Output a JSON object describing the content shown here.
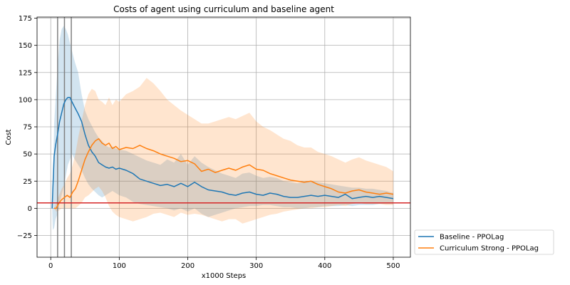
{
  "chart_data": {
    "type": "line",
    "title": "Costs of agent using curriculum and baseline agent",
    "xlabel": "x1000 Steps",
    "ylabel": "Cost",
    "xlim": [
      -20,
      525
    ],
    "ylim": [
      -45,
      176
    ],
    "xticks": [
      0,
      100,
      200,
      300,
      400,
      500
    ],
    "yticks": [
      -25,
      0,
      25,
      50,
      75,
      100,
      125,
      150,
      175
    ],
    "grid": true,
    "legend_position": "outside bottom-right",
    "threshold": {
      "y": 5,
      "color": "#d62728"
    },
    "vlines": {
      "x": [
        10,
        20,
        30
      ],
      "color": "#808080"
    },
    "series": [
      {
        "name": "Baseline - PPOLag",
        "color": "#1f77b4",
        "x": [
          2,
          3,
          5,
          7,
          10,
          13,
          16,
          19,
          22,
          25,
          28,
          31,
          35,
          40,
          45,
          50,
          55,
          60,
          65,
          70,
          75,
          80,
          85,
          90,
          95,
          100,
          110,
          120,
          130,
          140,
          150,
          160,
          170,
          180,
          190,
          200,
          210,
          220,
          230,
          240,
          250,
          260,
          270,
          280,
          290,
          300,
          310,
          320,
          330,
          340,
          350,
          360,
          370,
          380,
          390,
          400,
          410,
          420,
          430,
          440,
          450,
          460,
          470,
          480,
          490,
          500
        ],
        "y": [
          0,
          17,
          48,
          58,
          68,
          80,
          88,
          96,
          100,
          102,
          102,
          98,
          93,
          87,
          80,
          68,
          58,
          52,
          48,
          42,
          40,
          38,
          37,
          38,
          36,
          37,
          35,
          32,
          27,
          25,
          23,
          21,
          22,
          20,
          23,
          20,
          24,
          20,
          17,
          16,
          15,
          13,
          12,
          14,
          15,
          13,
          12,
          14,
          13,
          11,
          10,
          10,
          11,
          12,
          11,
          12,
          11,
          10,
          13,
          9,
          10,
          11,
          10,
          11,
          10,
          9
        ],
        "upper": [
          0,
          20,
          78,
          100,
          130,
          155,
          165,
          168,
          165,
          160,
          152,
          145,
          135,
          125,
          105,
          90,
          82,
          76,
          70,
          65,
          62,
          58,
          56,
          57,
          55,
          54,
          53,
          50,
          47,
          44,
          42,
          40,
          45,
          42,
          50,
          40,
          48,
          42,
          38,
          35,
          32,
          30,
          28,
          32,
          33,
          30,
          28,
          29,
          28,
          25,
          24,
          23,
          24,
          25,
          24,
          23,
          22,
          21,
          20,
          19,
          19,
          18,
          18,
          17,
          16,
          14
        ],
        "lower": [
          0,
          -20,
          -18,
          -10,
          -5,
          5,
          12,
          20,
          30,
          40,
          45,
          50,
          45,
          40,
          35,
          28,
          22,
          18,
          15,
          12,
          10,
          12,
          14,
          16,
          14,
          12,
          10,
          6,
          4,
          3,
          2,
          1,
          0,
          -2,
          0,
          -3,
          0,
          -5,
          -8,
          -6,
          -4,
          -2,
          0,
          1,
          2,
          2,
          3,
          3,
          2,
          1,
          1,
          0,
          0,
          1,
          1,
          2,
          2,
          2,
          3,
          2,
          3,
          3,
          3,
          4,
          4,
          4
        ]
      },
      {
        "name": "Curriculum Strong - PPOLag",
        "color": "#ff7f0e",
        "x": [
          5,
          8,
          12,
          16,
          20,
          24,
          28,
          32,
          36,
          40,
          45,
          50,
          55,
          60,
          65,
          70,
          75,
          80,
          85,
          90,
          95,
          100,
          110,
          120,
          130,
          140,
          150,
          160,
          170,
          180,
          190,
          200,
          210,
          220,
          230,
          240,
          250,
          260,
          270,
          280,
          290,
          300,
          310,
          320,
          330,
          340,
          350,
          360,
          370,
          380,
          390,
          400,
          410,
          420,
          430,
          440,
          450,
          460,
          470,
          480,
          490,
          500
        ],
        "y": [
          0,
          0,
          5,
          8,
          10,
          12,
          10,
          15,
          18,
          25,
          35,
          45,
          52,
          58,
          62,
          64,
          60,
          58,
          60,
          55,
          57,
          54,
          56,
          55,
          58,
          55,
          53,
          50,
          48,
          46,
          43,
          44,
          41,
          34,
          36,
          33,
          35,
          37,
          35,
          38,
          40,
          36,
          35,
          32,
          30,
          28,
          26,
          25,
          24,
          25,
          22,
          20,
          18,
          15,
          14,
          16,
          17,
          15,
          14,
          13,
          14,
          13
        ],
        "upper": [
          0,
          5,
          12,
          18,
          22,
          28,
          32,
          40,
          50,
          65,
          80,
          95,
          105,
          110,
          108,
          100,
          98,
          95,
          102,
          95,
          100,
          98,
          105,
          108,
          112,
          120,
          115,
          108,
          100,
          95,
          90,
          86,
          82,
          78,
          78,
          80,
          82,
          84,
          82,
          85,
          88,
          80,
          75,
          72,
          68,
          64,
          62,
          58,
          56,
          56,
          52,
          50,
          48,
          45,
          42,
          45,
          47,
          44,
          42,
          40,
          38,
          34
        ],
        "lower": [
          0,
          -3,
          -2,
          0,
          0,
          0,
          0,
          0,
          0,
          2,
          5,
          10,
          12,
          15,
          18,
          20,
          16,
          10,
          2,
          -3,
          -6,
          -8,
          -10,
          -12,
          -10,
          -8,
          -5,
          -4,
          -6,
          -8,
          -4,
          -6,
          -5,
          -6,
          -8,
          -10,
          -12,
          -10,
          -10,
          -14,
          -12,
          -10,
          -8,
          -6,
          -5,
          -3,
          -2,
          -1,
          0,
          0,
          1,
          1,
          2,
          3,
          2,
          4,
          5,
          4,
          4,
          4,
          3,
          3
        ]
      }
    ]
  }
}
